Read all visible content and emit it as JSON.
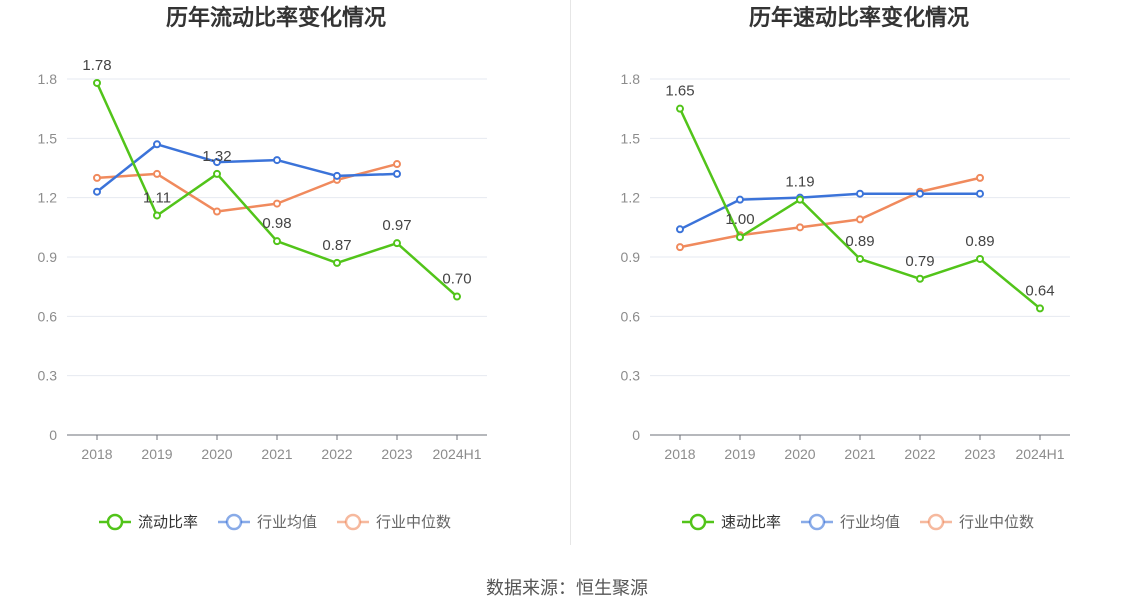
{
  "source": "数据来源：恒生聚源",
  "colors": {
    "main": "#52c41a",
    "avg": "#3b73d9",
    "median": "#f08a5d",
    "grid": "#e6e9f0",
    "axis": "#6e7079",
    "tick": "#8c8c8c",
    "title": "#333333",
    "label": "#444444"
  },
  "chart_data": [
    {
      "type": "line",
      "title": "历年流动比率变化情况",
      "categories": [
        "2018",
        "2019",
        "2020",
        "2021",
        "2022",
        "2023",
        "2024H1"
      ],
      "yticks": [
        "0",
        "0.3",
        "0.6",
        "0.9",
        "1.2",
        "1.5",
        "1.8"
      ],
      "ylim": [
        0,
        1.8
      ],
      "series": [
        {
          "name": "流动比率",
          "key": "main",
          "values": [
            1.78,
            1.11,
            1.32,
            0.98,
            0.87,
            0.97,
            0.7
          ],
          "labels": [
            "1.78",
            "1.11",
            "1.32",
            "0.98",
            "0.87",
            "0.97",
            "0.70"
          ]
        },
        {
          "name": "行业均值",
          "key": "avg",
          "values": [
            1.23,
            1.47,
            1.38,
            1.39,
            1.31,
            1.32,
            null
          ]
        },
        {
          "name": "行业中位数",
          "key": "median",
          "values": [
            1.3,
            1.32,
            1.13,
            1.17,
            1.29,
            1.37,
            null
          ]
        }
      ]
    },
    {
      "type": "line",
      "title": "历年速动比率变化情况",
      "categories": [
        "2018",
        "2019",
        "2020",
        "2021",
        "2022",
        "2023",
        "2024H1"
      ],
      "yticks": [
        "0",
        "0.3",
        "0.6",
        "0.9",
        "1.2",
        "1.5",
        "1.8"
      ],
      "ylim": [
        0,
        1.8
      ],
      "series": [
        {
          "name": "速动比率",
          "key": "main",
          "values": [
            1.65,
            1.0,
            1.19,
            0.89,
            0.79,
            0.89,
            0.64
          ],
          "labels": [
            "1.65",
            "1.00",
            "1.19",
            "0.89",
            "0.79",
            "0.89",
            "0.64"
          ]
        },
        {
          "name": "行业均值",
          "key": "avg",
          "values": [
            1.04,
            1.19,
            1.2,
            1.22,
            1.22,
            1.22,
            null
          ]
        },
        {
          "name": "行业中位数",
          "key": "median",
          "values": [
            0.95,
            1.01,
            1.05,
            1.09,
            1.23,
            1.3,
            null
          ]
        }
      ]
    }
  ]
}
